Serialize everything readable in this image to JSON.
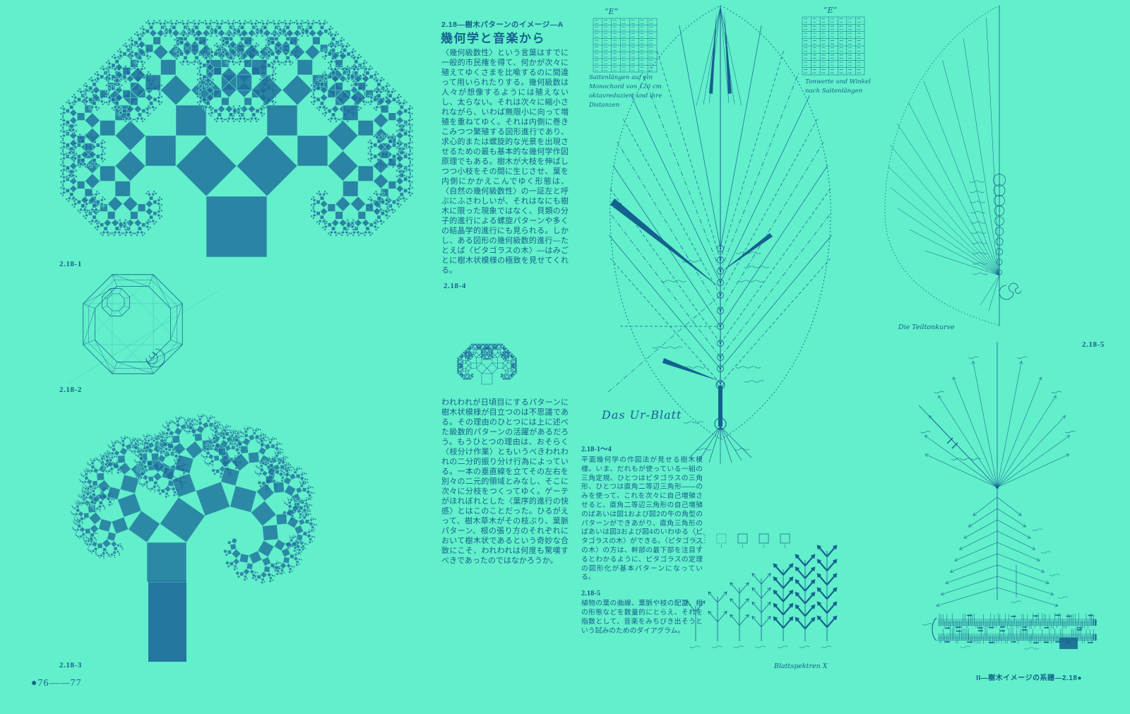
{
  "colors": {
    "background": "#62EFCB",
    "ink": "#14618E",
    "art": "#1E6C9B"
  },
  "article": {
    "kicker": "2.18—樹木パターンのイメージ—A",
    "title": "幾何学と音楽から",
    "para1": "〈幾何級数性〉という言葉はすでに一般的市民権を得て、何かが次々に殖えてゆくさまを比喩するのに間違って用いられたりする。幾何級数は人々が想像するようには殖えないし、太らない。それは次々に縮小されながら、いわば無限小に向って増殖を重ねてゆく。それは内側に巻きこみつつ繁殖する図形進行であり、求心的または螺旋的な光景を出現させるための最も基本的な幾何学作図原理でもある。樹木が大枝を伸ばしつつ小枝をその間に生じさせ、葉を内側にかかえこんでゆく形態は、〈自然の幾何級数性〉の一証左と呼ぶにふさわしいが、それはなにも樹木に限った現象ではなく、貝類の分子的進行による螺旋パターンや多くの結晶学的進行にも見られる。しかし、ある図形の幾何級数的進行—たとえば〈ピタゴラスの木〉—はみごとに樹木状模様の極致を見せてくれる。",
    "para2": "われわれが日頃目にするパターンに樹木状模様が目立つのは不思議である。その理由のひとつには上に述べた級数的パターンの活躍があるだろう。もうひとつの理由は、おそらく〈枝分け作業〉ともいうべきわれわれの二分的振り分け行為によっている。一本の垂直線を立てその左右を別々の二元的領域とみなし、そこに次々に分枝をつくってゆく。ゲーテがほれぼれとした〈葉序的進行の快感〉とはこのことだった。ひるがえって、樹木草木がその枝ぶり、葉脈パターン、根の張り方のそれぞれにおいて樹木状であるという奇妙な合致にこそ、われわれは何度も驚嘆すべきであったのではなかろうか。"
  },
  "figures": {
    "fig1": "2.18-1",
    "fig2": "2.18-2",
    "fig3": "2.18-3",
    "fig4": "2.18-4",
    "fig5": "2.18-5"
  },
  "notes": {
    "block1_title": "2.18-1〜4",
    "block1_body": "平面幾何学の作図法が見せる樹木模様。いま、だれもが使っている一組の三角定規、ひとつはピタゴラスの三角形、ひとつは直角二等辺三角形——のみを使って、これを次々に自己増殖させると、直角二等辺三角形の自己増殖のばあいは図1および図2の牛の角型のパターンができあがり、直角三角形のばあいは図3および図4のいわゆる〈ピタゴラスの木〉ができる。〈ピタゴラスの木〉の方は、幹部の最下部を注目するとわかるように、ピタゴラスの定理の図形化が基本パターンになっている。",
    "block2_title": "2.18-5",
    "block2_body": "植物の葉の曲線、葉脈や枝の配置、根の形態などを数量的にとらえ、それを指数として、音楽をみちびき出そうという試みのためのダイアグラム。"
  },
  "handwritten": {
    "table_left_label": "“E”",
    "table_left_caption": "Saitenlängen auf ein Monochord von 120 cm oktavreduziert und ihre Distanzen",
    "table_right_label": "“E”",
    "table_right_caption": "Tonwerte und Winkel nach Saitenlängen",
    "leaf_title": "Das Ur-Blatt",
    "curve_title": "Die Teiltonkurve",
    "spectra_title": "Blattspektren X"
  },
  "footer": {
    "left": "●76——77",
    "right": "II—樹木イメージの系譜—2.18●"
  }
}
